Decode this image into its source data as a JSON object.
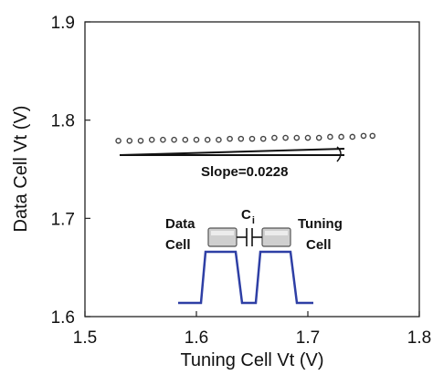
{
  "chart_data": {
    "type": "scatter",
    "title": "",
    "xlabel": "Tuning Cell Vt (V)",
    "ylabel": "Data Cell Vt (V)",
    "xlim": [
      1.5,
      1.8
    ],
    "ylim": [
      1.6,
      1.9
    ],
    "xticks": [
      "1.5",
      "1.6",
      "1.7",
      "1.8"
    ],
    "yticks": [
      "1.6",
      "1.7",
      "1.8",
      "1.9"
    ],
    "grid": false,
    "legend": "none",
    "series": [
      {
        "values": [
          {
            "x": 1.53,
            "y": 1.779
          },
          {
            "x": 1.54,
            "y": 1.779
          },
          {
            "x": 1.55,
            "y": 1.779
          },
          {
            "x": 1.56,
            "y": 1.78
          },
          {
            "x": 1.57,
            "y": 1.78
          },
          {
            "x": 1.58,
            "y": 1.78
          },
          {
            "x": 1.59,
            "y": 1.78
          },
          {
            "x": 1.6,
            "y": 1.78
          },
          {
            "x": 1.61,
            "y": 1.78
          },
          {
            "x": 1.62,
            "y": 1.78
          },
          {
            "x": 1.63,
            "y": 1.781
          },
          {
            "x": 1.64,
            "y": 1.781
          },
          {
            "x": 1.65,
            "y": 1.781
          },
          {
            "x": 1.66,
            "y": 1.781
          },
          {
            "x": 1.67,
            "y": 1.782
          },
          {
            "x": 1.68,
            "y": 1.782
          },
          {
            "x": 1.69,
            "y": 1.782
          },
          {
            "x": 1.7,
            "y": 1.782
          },
          {
            "x": 1.71,
            "y": 1.782
          },
          {
            "x": 1.72,
            "y": 1.783
          },
          {
            "x": 1.73,
            "y": 1.783
          },
          {
            "x": 1.74,
            "y": 1.783
          },
          {
            "x": 1.75,
            "y": 1.784
          },
          {
            "x": 1.758,
            "y": 1.784
          }
        ]
      }
    ],
    "annotations": {
      "slope_label": "Slope=0.0228",
      "coupling_label": "C",
      "coupling_subscript": "i",
      "left_cell_line1": "Data",
      "left_cell_line2": "Cell",
      "right_cell_line1": "Tuning",
      "right_cell_line2": "Cell"
    },
    "colors": {
      "points": "#444444",
      "waveform": "#2e3fa5",
      "cell_fill": "#cfcfcf"
    }
  }
}
